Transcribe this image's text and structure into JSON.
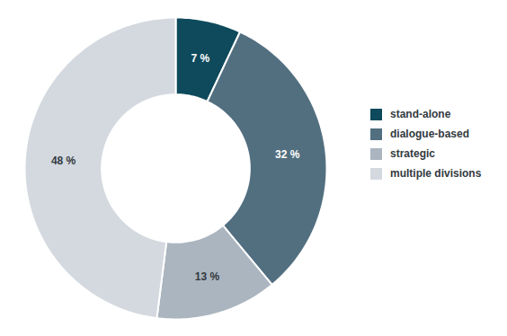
{
  "chart_data": {
    "type": "donut",
    "categories": [
      "stand-alone",
      "dialogue-based",
      "strategic",
      "multiple divisions"
    ],
    "values": [
      7,
      32,
      13,
      48
    ],
    "value_labels": [
      "7 %",
      "32 %",
      "13 %",
      "48 %"
    ],
    "colors": [
      "#0e4a5c",
      "#526f80",
      "#aab5bf",
      "#d4d9df"
    ],
    "data_labels": true,
    "legend": "right"
  }
}
